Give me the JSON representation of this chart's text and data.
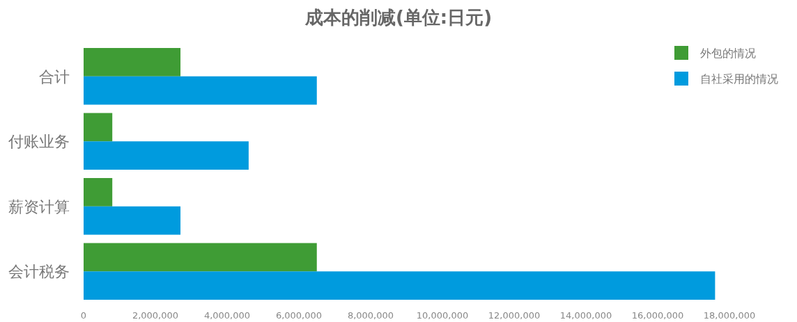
{
  "chart_data": {
    "type": "bar",
    "orientation": "horizontal",
    "title": "成本的削减(单位:日元)",
    "categories": [
      "合计",
      "付账业务",
      "薪资计算",
      "会计税务"
    ],
    "series": [
      {
        "name": "外包的情况",
        "color": "#3f9c35",
        "values": [
          2700000,
          800000,
          800000,
          6500000
        ]
      },
      {
        "name": "自社采用的情况",
        "color": "#009bde",
        "values": [
          6500000,
          4600000,
          2700000,
          17600000
        ]
      }
    ],
    "xlim": [
      0,
      18000000
    ],
    "xticks": [
      0,
      {
        "value": 2000000,
        "label": "2,000,000"
      },
      {
        "value": 4000000,
        "label": "4,000,000"
      },
      {
        "value": 6000000,
        "label": "6,000,000"
      },
      {
        "value": 8000000,
        "label": "8,000,000"
      },
      {
        "value": 10000000,
        "label": "10,000,000"
      },
      {
        "value": 12000000,
        "label": "12,000,000"
      },
      {
        "value": 14000000,
        "label": "14,000,000"
      },
      {
        "value": 16000000,
        "label": "16,000,000"
      },
      {
        "value": 18000000,
        "label": "18,000,000"
      }
    ],
    "legend": "top right",
    "grid": false
  }
}
